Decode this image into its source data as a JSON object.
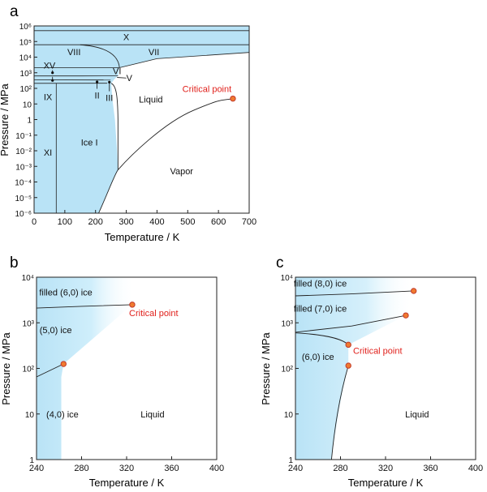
{
  "figure": {
    "panel_labels": [
      "a",
      "b",
      "c"
    ]
  },
  "colors": {
    "ice_fill": "#b9e3f6",
    "line": "#222222",
    "critical_point_fill": "#f07a30",
    "critical_point_stroke": "#c0392b",
    "critical_text": "#e0201b",
    "text": "#111111"
  },
  "chart_data": [
    {
      "panel": "a",
      "type": "line",
      "xlabel": "Temperature / K",
      "ylabel": "Pressure / MPa",
      "xlim": [
        0,
        700
      ],
      "ylim_log10": [
        -6,
        6
      ],
      "y_scale": "log",
      "x_ticks": [
        "0",
        "100",
        "200",
        "300",
        "400",
        "500",
        "600",
        "700"
      ],
      "y_ticks": [
        "10⁻⁶",
        "10⁻⁵",
        "10⁻⁴",
        "10⁻³",
        "10⁻²",
        "10⁻¹",
        "1",
        "10",
        "10²",
        "10³",
        "10⁴",
        "10⁵",
        "10⁶"
      ],
      "phase_labels": [
        {
          "text": "X",
          "x": 300,
          "y": 200000
        },
        {
          "text": "VIII",
          "x": 130,
          "y": 22000
        },
        {
          "text": "VII",
          "x": 390,
          "y": 22000
        },
        {
          "text": "XV",
          "x": 50,
          "y": 3000
        },
        {
          "text": "VI",
          "x": 270,
          "y": 1300
        },
        {
          "text": "V",
          "x": 310,
          "y": 460
        },
        {
          "text": "IX",
          "x": 45,
          "y": 28
        },
        {
          "text": "II",
          "x": 205,
          "y": 36
        },
        {
          "text": "III",
          "x": 245,
          "y": 25
        },
        {
          "text": "Liquid",
          "x": 380,
          "y": 20
        },
        {
          "text": "Ice I",
          "x": 180,
          "y": 0.035
        },
        {
          "text": "XI",
          "x": 45,
          "y": 0.008
        },
        {
          "text": "Vapor",
          "x": 480,
          "y": 0.0005
        }
      ],
      "boundaries": [
        {
          "name": "X upper boundary",
          "points": [
            [
              0,
              500000
            ],
            [
              700,
              500000
            ]
          ]
        },
        {
          "name": "X-VIII/VII boundary",
          "points": [
            [
              0,
              62000
            ],
            [
              700,
              62000
            ]
          ]
        },
        {
          "name": "VIII-VII boundary",
          "points": [
            [
              200,
              62000
            ],
            [
              255,
              35000
            ],
            [
              275,
              10000
            ],
            [
              278,
              2100
            ]
          ]
        },
        {
          "name": "VI-VII boundary",
          "points": [
            [
              278,
              2100
            ],
            [
              400,
              8000
            ],
            [
              700,
              20000
            ]
          ]
        },
        {
          "name": "XV-VI boundary",
          "points": [
            [
              0,
              2100
            ],
            [
              278,
              2100
            ]
          ]
        },
        {
          "name": "VI-V boundary",
          "points": [
            [
              0,
              620
            ],
            [
              150,
              620
            ],
            [
              273,
              632
            ]
          ]
        },
        {
          "name": "V-II boundary",
          "points": [
            [
              0,
              350
            ],
            [
              249,
              344
            ]
          ]
        },
        {
          "name": "II-IX boundary",
          "points": [
            [
              0,
              210
            ],
            [
              238,
              212
            ]
          ]
        },
        {
          "name": "melting curve",
          "points": [
            [
              251,
              209
            ],
            [
              273,
              0.0006
            ],
            [
              273,
              0.001
            ]
          ]
        },
        {
          "name": "ice I - vapor",
          "points": [
            [
              210,
              1e-06
            ],
            [
              260,
              0.0002
            ],
            [
              273,
              0.0006
            ]
          ]
        },
        {
          "name": "IX-XI / I-XI",
          "points": [
            [
              72,
              1e-06
            ],
            [
              72,
              210
            ]
          ]
        },
        {
          "name": "liquid-vapor",
          "points": [
            [
              273,
              0.0006
            ],
            [
              350,
              0.04
            ],
            [
              450,
              0.9
            ],
            [
              550,
              6
            ],
            [
              647,
              22
            ]
          ]
        }
      ],
      "critical_point": {
        "label": "Critical point",
        "x": 647,
        "y": 22
      }
    },
    {
      "panel": "b",
      "type": "line",
      "xlabel": "Temperature / K",
      "ylabel": "Pressure / MPa",
      "xlim": [
        240,
        400
      ],
      "ylim_log10": [
        0,
        4
      ],
      "y_scale": "log",
      "x_ticks": [
        "240",
        "280",
        "320",
        "360",
        "400"
      ],
      "y_ticks": [
        "1",
        "10",
        "10²",
        "10³",
        "10⁴"
      ],
      "phase_labels": [
        {
          "text": "filled (6,0) ice",
          "x": 266,
          "y": 4700
        },
        {
          "text": "(5,0) ice",
          "x": 257,
          "y": 700
        },
        {
          "text": "(4,0) ice",
          "x": 263,
          "y": 10
        },
        {
          "text": "Liquid",
          "x": 343,
          "y": 10
        }
      ],
      "boundaries": [
        {
          "name": "filled (6,0) - (5,0)",
          "points": [
            [
              240,
              2100
            ],
            [
              280,
              2300
            ],
            [
              325,
              2500
            ]
          ]
        },
        {
          "name": "(5,0) - (4,0)",
          "points": [
            [
              240,
              65
            ],
            [
              264,
              125
            ]
          ]
        }
      ],
      "critical_points": [
        {
          "x": 325,
          "y": 2500
        },
        {
          "x": 264,
          "y": 125
        }
      ],
      "critical_label": "Critical point"
    },
    {
      "panel": "c",
      "type": "line",
      "xlabel": "Temperature / K",
      "ylabel": "Pressure / MPa",
      "xlim": [
        240,
        400
      ],
      "ylim_log10": [
        0,
        4
      ],
      "y_scale": "log",
      "x_ticks": [
        "240",
        "280",
        "320",
        "360",
        "400"
      ],
      "y_ticks": [
        "1",
        "10",
        "10²",
        "10³",
        "10⁴"
      ],
      "phase_labels": [
        {
          "text": "filled (8,0) ice",
          "x": 262,
          "y": 7300
        },
        {
          "text": "filled (7,0) ice",
          "x": 262,
          "y": 2050
        },
        {
          "text": "(6,0) ice",
          "x": 260,
          "y": 180
        },
        {
          "text": "Liquid",
          "x": 348,
          "y": 10
        }
      ],
      "boundaries": [
        {
          "name": "filled (8,0) - (7,0)",
          "points": [
            [
              240,
              3900
            ],
            [
              290,
              4300
            ],
            [
              345,
              5000
            ]
          ]
        },
        {
          "name": "filled (7,0) - (6,0)",
          "points": [
            [
              240,
              620
            ],
            [
              290,
              850
            ],
            [
              338,
              1450
            ]
          ]
        },
        {
          "name": "(6,0) upper boundary",
          "points": [
            [
              240,
              600
            ],
            [
              268,
              500
            ],
            [
              287,
              330
            ]
          ]
        },
        {
          "name": "(6,0) melting line",
          "points": [
            [
              272,
              1
            ],
            [
              277,
              8
            ],
            [
              283,
              40
            ],
            [
              287,
              115
            ]
          ]
        }
      ],
      "critical_points": [
        {
          "x": 345,
          "y": 5000
        },
        {
          "x": 338,
          "y": 1450
        },
        {
          "x": 287,
          "y": 330
        },
        {
          "x": 287,
          "y": 115
        }
      ],
      "critical_label": "Critical point"
    }
  ]
}
